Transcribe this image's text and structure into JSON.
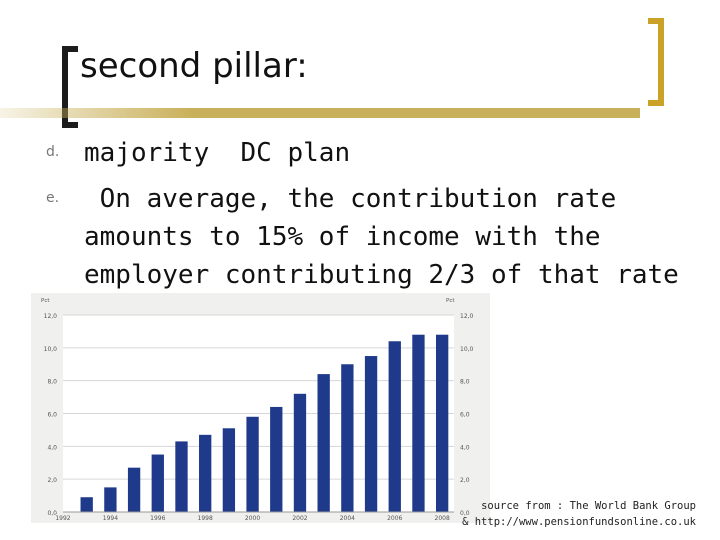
{
  "slide": {
    "title": "second pillar:",
    "bullets": [
      {
        "marker": "d.",
        "text": "majority  DC plan"
      },
      {
        "marker": "e.",
        "text": " On average, the contribution rate\namounts to 15% of income with the\nemployer contributing 2/3 of that rate"
      }
    ],
    "source_line1": "source from : The World Bank Group",
    "source_line2": "& http://www.pensionfundsonline.co.uk"
  },
  "chart_data": {
    "type": "bar",
    "left_unit": "Pct",
    "right_unit": "Pct",
    "ylim": [
      0,
      12
    ],
    "yticks": [
      "0,0",
      "2,0",
      "4,0",
      "6,0",
      "8,0",
      "10,0",
      "12,0"
    ],
    "x_tick_labels": [
      "1992",
      "1994",
      "1996",
      "1998",
      "2000",
      "2002",
      "2004",
      "2006",
      "2008"
    ],
    "categories": [
      "1993",
      "1994",
      "1995",
      "1996",
      "1997",
      "1998",
      "1999",
      "2000",
      "2001",
      "2002",
      "2003",
      "2004",
      "2005",
      "2006",
      "2007",
      "2008"
    ],
    "values": [
      0.9,
      1.5,
      2.7,
      3.5,
      4.3,
      4.7,
      5.1,
      5.8,
      6.4,
      7.2,
      8.4,
      9.0,
      9.5,
      10.4,
      10.8,
      10.8
    ],
    "bar_color": "#1f3a8a",
    "grid": true
  }
}
